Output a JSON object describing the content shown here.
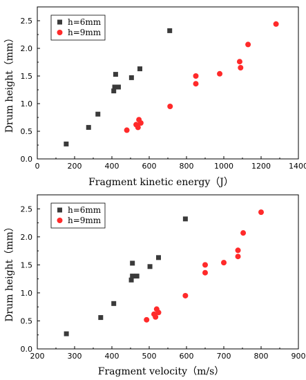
{
  "chart_data": [
    {
      "type": "scatter",
      "xlabel": "Fragment kinetic energy（J）",
      "ylabel": "Drum height（mm）",
      "xlim": [
        0,
        1400
      ],
      "ylim": [
        0.0,
        2.75
      ],
      "xticks": [
        "0",
        "200",
        "400",
        "600",
        "800",
        "1000",
        "1200",
        "1400"
      ],
      "yticks": [
        "0.0",
        "0.5",
        "1.0",
        "1.5",
        "2.0",
        "2.5"
      ],
      "legend": "top-left",
      "grid": false,
      "series": [
        {
          "name": "h=6mm",
          "marker": "square",
          "color": "#3a3a3a",
          "points": [
            [
              155,
              0.27
            ],
            [
              275,
              0.57
            ],
            [
              325,
              0.81
            ],
            [
              410,
              1.23
            ],
            [
              415,
              1.3
            ],
            [
              420,
              1.53
            ],
            [
              435,
              1.3
            ],
            [
              505,
              1.47
            ],
            [
              550,
              1.63
            ],
            [
              710,
              2.32
            ]
          ]
        },
        {
          "name": "h=9mm",
          "marker": "circle",
          "color": "#ff2a2a",
          "points": [
            [
              480,
              0.52
            ],
            [
              530,
              0.62
            ],
            [
              540,
              0.57
            ],
            [
              545,
              0.71
            ],
            [
              555,
              0.65
            ],
            [
              712,
              0.95
            ],
            [
              850,
              1.36
            ],
            [
              850,
              1.5
            ],
            [
              978,
              1.54
            ],
            [
              1085,
              1.76
            ],
            [
              1090,
              1.65
            ],
            [
              1130,
              2.07
            ],
            [
              1280,
              2.44
            ]
          ]
        }
      ]
    },
    {
      "type": "scatter",
      "xlabel": "Fragment velocity（m/s）",
      "ylabel": "Drum height（mm）",
      "xlim": [
        200,
        900
      ],
      "ylim": [
        0.0,
        2.75
      ],
      "xticks": [
        "200",
        "300",
        "400",
        "500",
        "600",
        "700",
        "800",
        "900"
      ],
      "yticks": [
        "0.0",
        "0.5",
        "1.0",
        "1.5",
        "2.0",
        "2.5"
      ],
      "legend": "top-left",
      "grid": false,
      "series": [
        {
          "name": "h=6mm",
          "marker": "square",
          "color": "#3a3a3a",
          "points": [
            [
              278,
              0.27
            ],
            [
              370,
              0.56
            ],
            [
              405,
              0.81
            ],
            [
              452,
              1.23
            ],
            [
              455,
              1.3
            ],
            [
              455,
              1.53
            ],
            [
              467,
              1.3
            ],
            [
              502,
              1.47
            ],
            [
              525,
              1.63
            ],
            [
              597,
              2.32
            ]
          ]
        },
        {
          "name": "h=9mm",
          "marker": "circle",
          "color": "#ff2a2a",
          "points": [
            [
              493,
              0.52
            ],
            [
              513,
              0.62
            ],
            [
              517,
              0.57
            ],
            [
              520,
              0.71
            ],
            [
              525,
              0.65
            ],
            [
              597,
              0.95
            ],
            [
              650,
              1.36
            ],
            [
              650,
              1.5
            ],
            [
              700,
              1.54
            ],
            [
              738,
              1.76
            ],
            [
              738,
              1.65
            ],
            [
              752,
              2.07
            ],
            [
              800,
              2.44
            ]
          ]
        }
      ]
    }
  ]
}
